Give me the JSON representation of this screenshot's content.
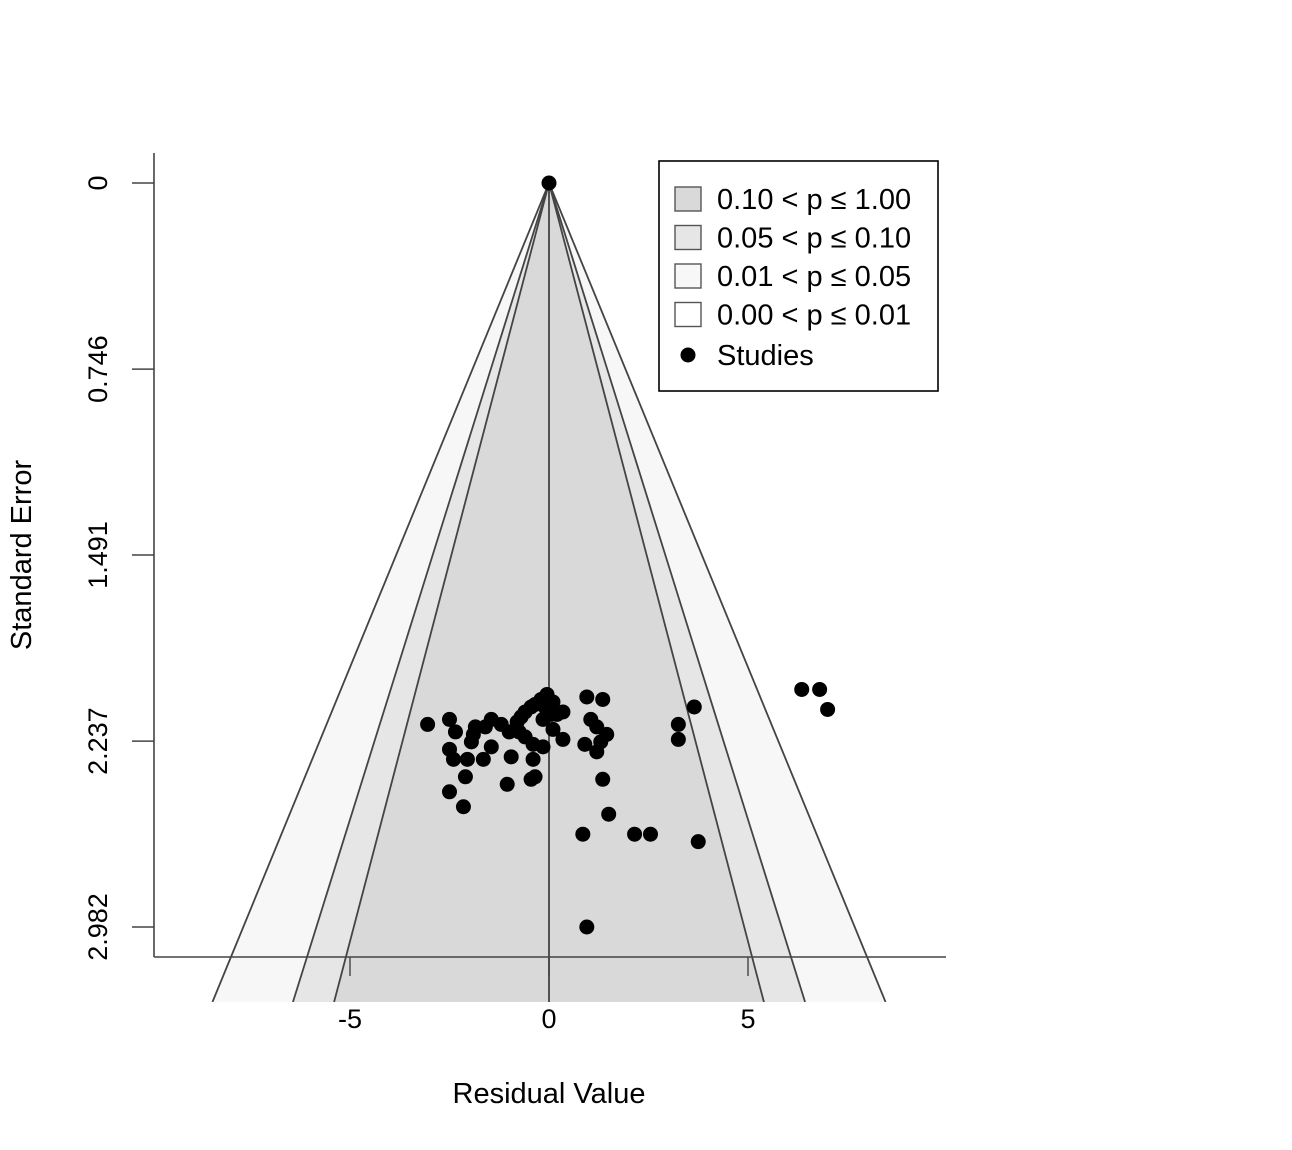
{
  "chart_data": {
    "type": "scatter",
    "title": "",
    "xlabel": "Residual Value",
    "ylabel": "Standard Error",
    "xlim": [
      -9.9,
      10.0
    ],
    "ylim": [
      0,
      3.1
    ],
    "x_ticks": [
      -5,
      0,
      5
    ],
    "y_ticks": [
      0,
      0.746,
      1.491,
      2.237,
      2.982
    ],
    "y_tick_labels": [
      "0",
      "0.746",
      "1.491",
      "2.237",
      "2.982"
    ],
    "y_reversed": true,
    "grid": false,
    "legend_position": "top-right",
    "center": 0,
    "contour_regions": [
      {
        "label": "0.10 < p ≤ 1.00",
        "z": 1.645,
        "color": "#d9d9d9"
      },
      {
        "label": "0.05 < p ≤ 0.10",
        "z": 1.96,
        "color": "#e6e6e6"
      },
      {
        "label": "0.01 < p ≤ 0.05",
        "z": 2.576,
        "color": "#f7f7f7"
      },
      {
        "label": "0.00 < p ≤ 0.01",
        "z": null,
        "color": "#ffffff"
      }
    ],
    "series": [
      {
        "name": "Studies",
        "color": "#000000",
        "points": [
          [
            0.0,
            0.0
          ],
          [
            0.95,
            2.982
          ],
          [
            6.35,
            2.03
          ],
          [
            6.8,
            2.03
          ],
          [
            7.0,
            2.11
          ],
          [
            3.65,
            2.1
          ],
          [
            3.25,
            2.17
          ],
          [
            3.25,
            2.23
          ],
          [
            0.95,
            2.06
          ],
          [
            1.35,
            2.07
          ],
          [
            1.05,
            2.15
          ],
          [
            1.2,
            2.18
          ],
          [
            1.45,
            2.21
          ],
          [
            1.3,
            2.24
          ],
          [
            0.9,
            2.25
          ],
          [
            1.2,
            2.28
          ],
          [
            1.35,
            2.39
          ],
          [
            1.5,
            2.53
          ],
          [
            0.85,
            2.61
          ],
          [
            2.15,
            2.61
          ],
          [
            2.55,
            2.61
          ],
          [
            3.75,
            2.64
          ],
          [
            -0.05,
            2.05
          ],
          [
            -0.2,
            2.07
          ],
          [
            -0.1,
            2.1
          ],
          [
            0.1,
            2.08
          ],
          [
            -0.35,
            2.09
          ],
          [
            0.05,
            2.13
          ],
          [
            -0.15,
            2.15
          ],
          [
            0.35,
            2.12
          ],
          [
            0.2,
            2.13
          ],
          [
            -0.45,
            2.1
          ],
          [
            0.1,
            2.19
          ],
          [
            -0.6,
            2.12
          ],
          [
            -0.7,
            2.14
          ],
          [
            -0.8,
            2.16
          ],
          [
            -0.75,
            2.2
          ],
          [
            0.35,
            2.23
          ],
          [
            -0.15,
            2.26
          ],
          [
            -0.4,
            2.25
          ],
          [
            -0.6,
            2.22
          ],
          [
            -1.0,
            2.2
          ],
          [
            -1.2,
            2.17
          ],
          [
            -1.45,
            2.15
          ],
          [
            -1.6,
            2.18
          ],
          [
            -1.85,
            2.18
          ],
          [
            -1.9,
            2.21
          ],
          [
            -2.35,
            2.2
          ],
          [
            -1.95,
            2.24
          ],
          [
            -1.45,
            2.26
          ],
          [
            -2.5,
            2.15
          ],
          [
            -3.05,
            2.17
          ],
          [
            -2.5,
            2.27
          ],
          [
            -2.4,
            2.31
          ],
          [
            -2.05,
            2.31
          ],
          [
            -1.65,
            2.31
          ],
          [
            -0.95,
            2.3
          ],
          [
            -0.4,
            2.31
          ],
          [
            -2.1,
            2.38
          ],
          [
            -0.35,
            2.38
          ],
          [
            -0.45,
            2.39
          ],
          [
            -1.05,
            2.41
          ],
          [
            -2.5,
            2.44
          ],
          [
            -2.15,
            2.5
          ]
        ]
      }
    ]
  }
}
